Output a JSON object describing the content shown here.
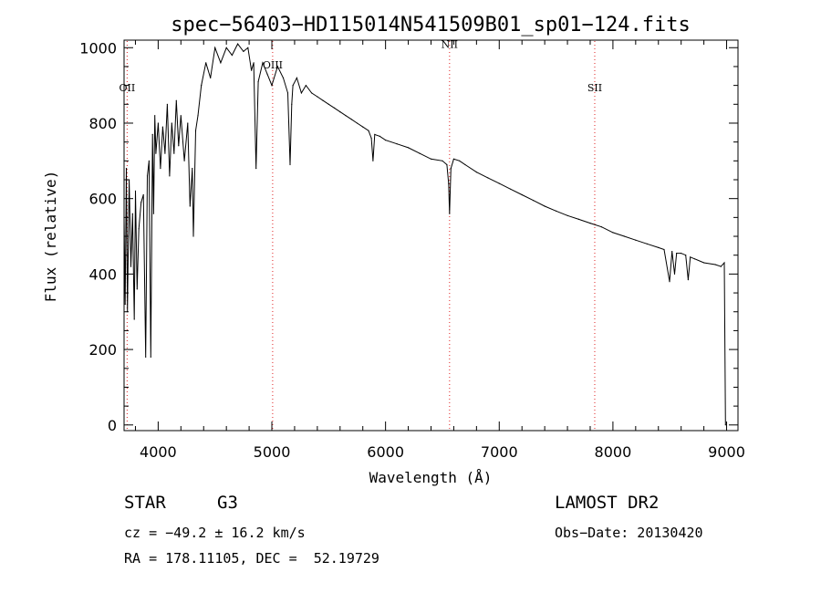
{
  "chart_data": {
    "type": "line",
    "title": "spec−56403−HD115014N541509B01_sp01−124.fits",
    "xlabel": "Wavelength (Å)",
    "ylabel": "Flux (relative)",
    "xlim": [
      3700,
      9100
    ],
    "ylim": [
      -15,
      1020
    ],
    "xticks": [
      4000,
      5000,
      6000,
      7000,
      8000,
      9000
    ],
    "yticks": [
      0,
      200,
      400,
      600,
      800,
      1000
    ],
    "grid": false,
    "emission_lines": [
      {
        "name": "OII",
        "x": 3727,
        "label_flux": 885
      },
      {
        "name": "OIII",
        "x": 5007,
        "label_flux": 945
      },
      {
        "name": "NII",
        "x": 6563,
        "label_flux": 1000
      },
      {
        "name": "SII",
        "x": 7840,
        "label_flux": 885
      }
    ],
    "series": [
      {
        "name": "spectrum",
        "x": [
          3700,
          3710,
          3720,
          3730,
          3745,
          3760,
          3775,
          3790,
          3800,
          3815,
          3830,
          3850,
          3870,
          3890,
          3905,
          3920,
          3935,
          3950,
          3960,
          3970,
          3980,
          4000,
          4020,
          4040,
          4060,
          4080,
          4100,
          4120,
          4140,
          4160,
          4180,
          4200,
          4230,
          4260,
          4280,
          4300,
          4310,
          4330,
          4350,
          4380,
          4420,
          4460,
          4500,
          4550,
          4600,
          4650,
          4700,
          4750,
          4790,
          4820,
          4840,
          4861,
          4880,
          4920,
          4960,
          5000,
          5050,
          5100,
          5140,
          5160,
          5175,
          5185,
          5220,
          5260,
          5300,
          5350,
          5400,
          5450,
          5500,
          5550,
          5600,
          5650,
          5700,
          5750,
          5800,
          5850,
          5875,
          5890,
          5905,
          5950,
          6000,
          6100,
          6200,
          6300,
          6400,
          6500,
          6540,
          6555,
          6563,
          6575,
          6600,
          6650,
          6700,
          6800,
          6900,
          7000,
          7100,
          7200,
          7300,
          7400,
          7500,
          7600,
          7700,
          7800,
          7900,
          8000,
          8100,
          8200,
          8300,
          8400,
          8450,
          8498,
          8520,
          8542,
          8560,
          8600,
          8640,
          8662,
          8680,
          8720,
          8800,
          8900,
          8950,
          8980,
          8990
        ],
        "y": [
          550,
          320,
          680,
          300,
          650,
          420,
          560,
          280,
          620,
          360,
          520,
          590,
          610,
          180,
          660,
          700,
          180,
          770,
          560,
          820,
          720,
          800,
          680,
          790,
          720,
          850,
          660,
          800,
          720,
          860,
          740,
          820,
          700,
          800,
          580,
          680,
          500,
          780,
          820,
          900,
          960,
          920,
          1000,
          960,
          1000,
          980,
          1010,
          990,
          1000,
          940,
          960,
          680,
          910,
          960,
          930,
          900,
          950,
          920,
          880,
          690,
          850,
          900,
          920,
          880,
          900,
          880,
          870,
          860,
          850,
          840,
          830,
          820,
          810,
          800,
          790,
          780,
          760,
          700,
          770,
          765,
          755,
          745,
          735,
          720,
          705,
          700,
          690,
          640,
          560,
          680,
          705,
          700,
          690,
          670,
          655,
          640,
          625,
          610,
          595,
          580,
          567,
          555,
          545,
          535,
          525,
          510,
          500,
          490,
          480,
          470,
          465,
          380,
          460,
          400,
          455,
          455,
          450,
          385,
          445,
          440,
          430,
          425,
          420,
          430,
          0
        ]
      }
    ]
  },
  "info": {
    "object_class": "STAR",
    "subclass": "G3",
    "survey": "LAMOST DR2",
    "cz": "cz = −49.2 ± 16.2 km/s",
    "obs_date": "Obs−Date: 20130420",
    "coords": "RA = 178.11105, DEC =  52.19729"
  }
}
